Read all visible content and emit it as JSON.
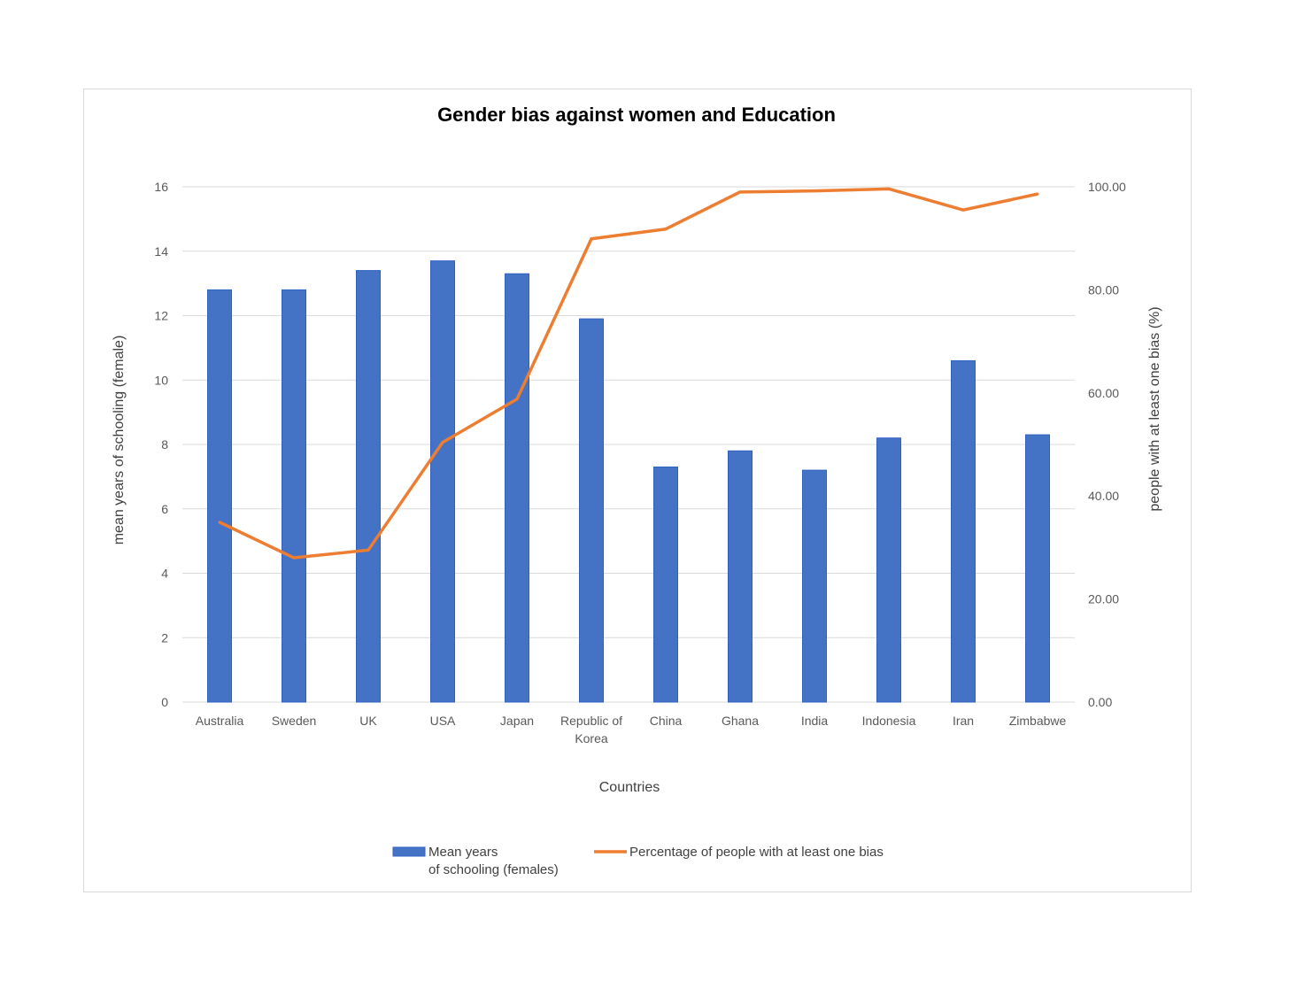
{
  "chart_data": {
    "type": "bar",
    "title": "Gender bias against women and Education",
    "xlabel": "Countries",
    "ylabel": "mean years of schooling (female)",
    "y2label": "people with at least one bias (%)",
    "categories": [
      [
        "Australia"
      ],
      [
        "Sweden"
      ],
      [
        "UK"
      ],
      [
        "USA"
      ],
      [
        "Japan"
      ],
      [
        "Republic of",
        "Korea"
      ],
      [
        "China"
      ],
      [
        "Ghana"
      ],
      [
        "India"
      ],
      [
        "Indonesia"
      ],
      [
        "Iran"
      ],
      [
        "Zimbabwe"
      ]
    ],
    "ylim": [
      0,
      16
    ],
    "y_ticks": [
      "0",
      "2",
      "4",
      "6",
      "8",
      "10",
      "12",
      "14",
      "16"
    ],
    "y2lim": [
      0,
      100
    ],
    "y2_ticks": [
      "0.00",
      "20.00",
      "40.00",
      "60.00",
      "80.00",
      "100.00"
    ],
    "grid": true,
    "legend_position": "bottom",
    "series": [
      {
        "name": "Mean years of schooling (females)",
        "legend_lines": [
          "Mean years",
          "of schooling (females)"
        ],
        "type": "bar",
        "axis": "left",
        "color": "#4472C4",
        "values": [
          12.8,
          12.8,
          13.4,
          13.7,
          13.3,
          11.9,
          7.3,
          7.8,
          7.2,
          8.2,
          10.6,
          8.3
        ]
      },
      {
        "name": "Percentage of people with at least one bias",
        "legend_lines": [
          "Percentage of people with at least one bias"
        ],
        "type": "line",
        "axis": "right",
        "color": "#ED7D31",
        "values": [
          34.9,
          28.0,
          29.5,
          50.4,
          58.8,
          89.9,
          91.8,
          99.0,
          99.2,
          99.6,
          95.5,
          98.6
        ]
      }
    ]
  }
}
